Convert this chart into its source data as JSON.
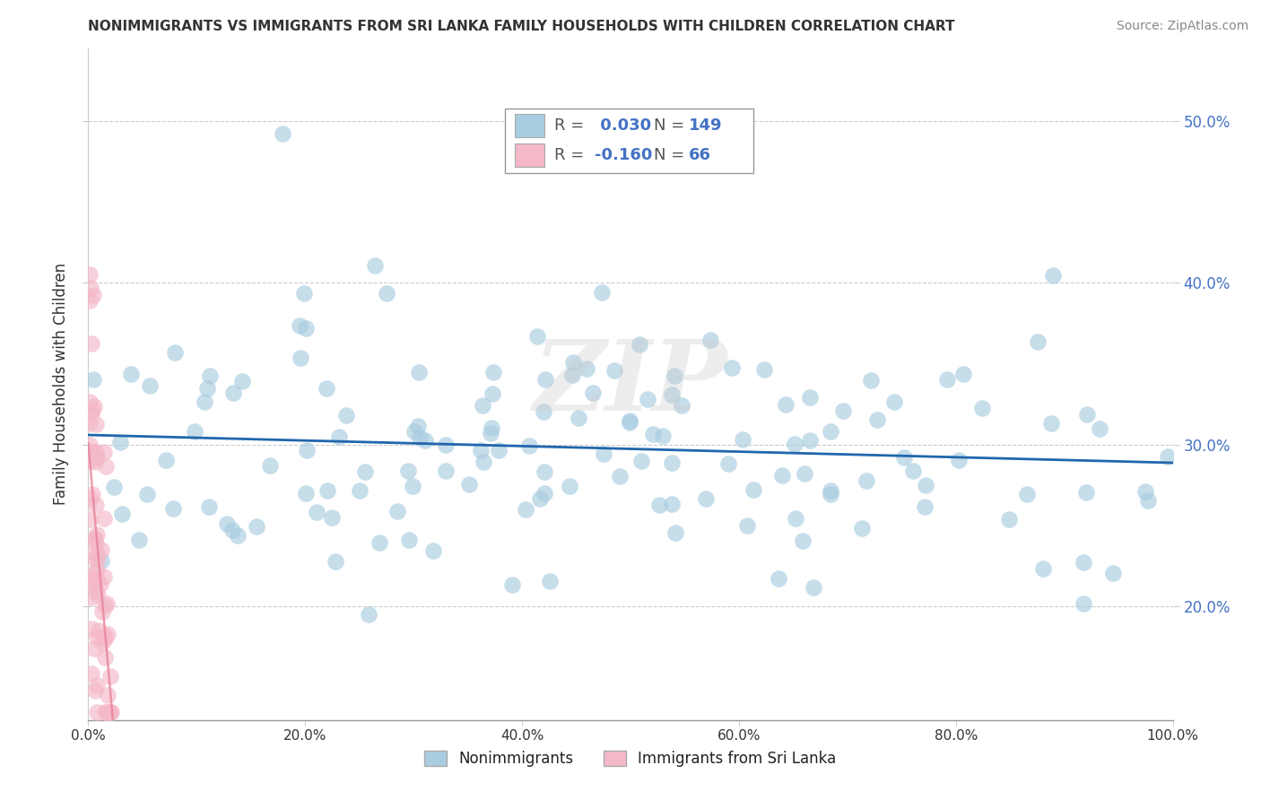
{
  "title": "NONIMMIGRANTS VS IMMIGRANTS FROM SRI LANKA FAMILY HOUSEHOLDS WITH CHILDREN CORRELATION CHART",
  "source": "Source: ZipAtlas.com",
  "ylabel": "Family Households with Children",
  "nonimmigrant_R": 0.03,
  "nonimmigrant_N": 149,
  "immigrant_R": -0.16,
  "immigrant_N": 66,
  "blue_dot_color": "#a8cce0",
  "pink_dot_color": "#f4b8c8",
  "blue_line_color": "#2166ac",
  "pink_line_color": "#e8849a",
  "background_color": "#ffffff",
  "grid_color": "#cccccc",
  "xlim": [
    0.0,
    1.0
  ],
  "ylim": [
    0.13,
    0.545
  ],
  "yticks": [
    0.2,
    0.3,
    0.4,
    0.5
  ],
  "xticks": [
    0.0,
    0.2,
    0.4,
    0.6,
    0.8,
    1.0
  ],
  "tick_label_color": "#4472c4",
  "watermark": "ZIPAtlas",
  "legend_R_color": "#4472c4",
  "legend_label_color": "#333333"
}
